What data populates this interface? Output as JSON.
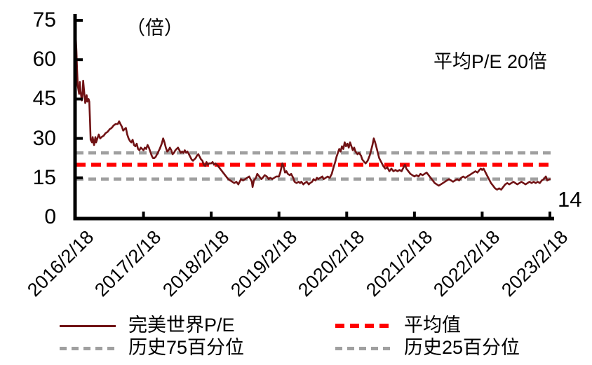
{
  "legend": {
    "items": [
      {
        "label": "完美世界P/E",
        "style": "solid",
        "color": "#701214",
        "thickness": 3
      },
      {
        "label": "历史75百分位",
        "style": "dashed",
        "color": "#A0A0A0",
        "dash": [
          10,
          7
        ],
        "thickness": 5
      },
      {
        "label": "平均值",
        "style": "dashed",
        "color": "#FF0000",
        "dash": [
          13,
          8
        ],
        "thickness": 6
      },
      {
        "label": "历史25百分位",
        "style": "dashed",
        "color": "#A0A0A0",
        "dash": [
          10,
          7
        ],
        "thickness": 5
      }
    ]
  },
  "chart_data": {
    "type": "line",
    "title": "",
    "unit_label": "（倍）",
    "annotation": "平均P/E 20倍",
    "series_end_label": "14",
    "x_tick_labels": [
      "2016/2/18",
      "2017/2/18",
      "2018/2/18",
      "2019/2/18",
      "2020/2/18",
      "2021/2/18",
      "2022/2/18",
      "2023/2/18"
    ],
    "y_ticks": [
      0,
      15,
      30,
      45,
      60,
      75
    ],
    "ylim": [
      0,
      75
    ],
    "x_range_years": [
      0,
      7
    ],
    "grid": false,
    "legend_position": "bottom",
    "reference_lines": [
      {
        "name": "历史75百分位",
        "value": 24.5,
        "color": "#A0A0A0",
        "dash": [
          11,
          7
        ],
        "width": 4.5
      },
      {
        "name": "平均值",
        "value": 20,
        "color": "#FF0000",
        "dash": [
          14,
          8
        ],
        "width": 5.5
      },
      {
        "name": "历史25百分位",
        "value": 14.5,
        "color": "#A0A0A0",
        "dash": [
          11,
          7
        ],
        "width": 4.5
      }
    ],
    "series": [
      {
        "name": "完美世界P/E",
        "color": "#701214",
        "style": "solid",
        "last_value": 14,
        "points": [
          [
            0,
            69
          ],
          [
            0.01,
            63
          ],
          [
            0.02,
            56
          ],
          [
            0.03,
            50
          ],
          [
            0.05,
            47
          ],
          [
            0.06,
            51.5
          ],
          [
            0.07,
            48
          ],
          [
            0.09,
            44.5
          ],
          [
            0.1,
            47
          ],
          [
            0.11,
            52
          ],
          [
            0.13,
            46
          ],
          [
            0.14,
            43.5
          ],
          [
            0.16,
            46.5
          ],
          [
            0.17,
            44
          ],
          [
            0.19,
            45
          ],
          [
            0.2,
            44
          ],
          [
            0.21,
            37
          ],
          [
            0.22,
            29.5
          ],
          [
            0.24,
            28.5
          ],
          [
            0.25,
            30.5
          ],
          [
            0.27,
            27.5
          ],
          [
            0.29,
            30.5
          ],
          [
            0.3,
            28.5
          ],
          [
            0.32,
            30
          ],
          [
            0.34,
            31.5
          ],
          [
            0.36,
            30
          ],
          [
            0.38,
            30.5
          ],
          [
            0.41,
            31
          ],
          [
            0.44,
            32
          ],
          [
            0.47,
            32.5
          ],
          [
            0.5,
            33.5
          ],
          [
            0.53,
            34
          ],
          [
            0.56,
            35
          ],
          [
            0.59,
            35.5
          ],
          [
            0.62,
            35.5
          ],
          [
            0.64,
            36.5
          ],
          [
            0.66,
            35.5
          ],
          [
            0.68,
            34.5
          ],
          [
            0.7,
            33
          ],
          [
            0.72,
            33.5
          ],
          [
            0.74,
            34
          ],
          [
            0.76,
            31.5
          ],
          [
            0.78,
            30
          ],
          [
            0.8,
            29
          ],
          [
            0.82,
            28.5
          ],
          [
            0.84,
            29.5
          ],
          [
            0.86,
            27.5
          ],
          [
            0.88,
            27
          ],
          [
            0.9,
            28
          ],
          [
            0.92,
            26
          ],
          [
            0.94,
            25.5
          ],
          [
            0.96,
            26.5
          ],
          [
            0.98,
            26
          ],
          [
            1,
            25.5
          ],
          [
            1.02,
            26.5
          ],
          [
            1.04,
            26
          ],
          [
            1.06,
            27.5
          ],
          [
            1.08,
            26.5
          ],
          [
            1.1,
            25
          ],
          [
            1.12,
            23.5
          ],
          [
            1.14,
            22.5
          ],
          [
            1.16,
            22.5
          ],
          [
            1.18,
            23
          ],
          [
            1.21,
            24.5
          ],
          [
            1.24,
            26
          ],
          [
            1.27,
            28
          ],
          [
            1.29,
            30
          ],
          [
            1.31,
            28.5
          ],
          [
            1.33,
            26.5
          ],
          [
            1.35,
            25
          ],
          [
            1.37,
            25.5
          ],
          [
            1.39,
            26.5
          ],
          [
            1.41,
            25.5
          ],
          [
            1.43,
            24
          ],
          [
            1.45,
            24.5
          ],
          [
            1.47,
            25.5
          ],
          [
            1.49,
            26
          ],
          [
            1.51,
            26.5
          ],
          [
            1.53,
            25.5
          ],
          [
            1.55,
            24.5
          ],
          [
            1.57,
            25
          ],
          [
            1.59,
            24.5
          ],
          [
            1.61,
            25.5
          ],
          [
            1.63,
            24.5
          ],
          [
            1.65,
            25
          ],
          [
            1.67,
            24
          ],
          [
            1.69,
            23
          ],
          [
            1.71,
            22
          ],
          [
            1.73,
            21.5
          ],
          [
            1.75,
            22
          ],
          [
            1.77,
            22.5
          ],
          [
            1.79,
            23.5
          ],
          [
            1.81,
            24
          ],
          [
            1.83,
            23
          ],
          [
            1.85,
            22
          ],
          [
            1.87,
            21.5
          ],
          [
            1.89,
            20
          ],
          [
            1.91,
            19.5
          ],
          [
            1.93,
            21
          ],
          [
            1.95,
            20
          ],
          [
            1.97,
            20.5
          ],
          [
            2,
            20.5
          ],
          [
            2.02,
            21
          ],
          [
            2.04,
            20
          ],
          [
            2.06,
            20.5
          ],
          [
            2.08,
            20
          ],
          [
            2.1,
            19.5
          ],
          [
            2.13,
            18.5
          ],
          [
            2.16,
            17.5
          ],
          [
            2.19,
            16.5
          ],
          [
            2.22,
            15.5
          ],
          [
            2.25,
            14.5
          ],
          [
            2.28,
            14
          ],
          [
            2.31,
            13.5
          ],
          [
            2.34,
            13
          ],
          [
            2.37,
            13.5
          ],
          [
            2.4,
            12.5
          ],
          [
            2.42,
            13.5
          ],
          [
            2.44,
            14.5
          ],
          [
            2.47,
            14
          ],
          [
            2.5,
            14.5
          ],
          [
            2.53,
            15
          ],
          [
            2.56,
            15.5
          ],
          [
            2.58,
            14.5
          ],
          [
            2.6,
            13.5
          ],
          [
            2.61,
            11.5
          ],
          [
            2.63,
            14
          ],
          [
            2.66,
            15
          ],
          [
            2.68,
            16.5
          ],
          [
            2.71,
            15.5
          ],
          [
            2.74,
            14.5
          ],
          [
            2.76,
            15
          ],
          [
            2.79,
            16
          ],
          [
            2.82,
            15.5
          ],
          [
            2.85,
            14.5
          ],
          [
            2.87,
            15
          ],
          [
            2.9,
            14.5
          ],
          [
            2.93,
            15
          ],
          [
            2.96,
            15.5
          ],
          [
            2.98,
            15.5
          ],
          [
            3,
            15.5
          ],
          [
            3.02,
            17
          ],
          [
            3.05,
            20.5
          ],
          [
            3.07,
            19
          ],
          [
            3.09,
            17
          ],
          [
            3.11,
            17.5
          ],
          [
            3.13,
            16.5
          ],
          [
            3.16,
            16
          ],
          [
            3.18,
            16.5
          ],
          [
            3.21,
            15
          ],
          [
            3.23,
            13.5
          ],
          [
            3.26,
            13
          ],
          [
            3.29,
            13.5
          ],
          [
            3.31,
            13
          ],
          [
            3.33,
            13.5
          ],
          [
            3.36,
            12.5
          ],
          [
            3.38,
            13
          ],
          [
            3.41,
            13.5
          ],
          [
            3.44,
            12.5
          ],
          [
            3.46,
            13
          ],
          [
            3.49,
            13.5
          ],
          [
            3.51,
            14.5
          ],
          [
            3.54,
            14
          ],
          [
            3.56,
            15
          ],
          [
            3.58,
            14.5
          ],
          [
            3.61,
            15
          ],
          [
            3.64,
            15.5
          ],
          [
            3.66,
            14.5
          ],
          [
            3.69,
            15
          ],
          [
            3.72,
            15.5
          ],
          [
            3.75,
            15
          ],
          [
            3.78,
            16.5
          ],
          [
            3.8,
            18.5
          ],
          [
            3.83,
            21
          ],
          [
            3.85,
            23
          ],
          [
            3.87,
            24.5
          ],
          [
            3.89,
            26
          ],
          [
            3.91,
            25
          ],
          [
            3.93,
            27
          ],
          [
            3.95,
            26
          ],
          [
            3.97,
            28.5
          ],
          [
            3.99,
            27
          ],
          [
            4.01,
            28
          ],
          [
            4.03,
            26.5
          ],
          [
            4.05,
            28.5
          ],
          [
            4.07,
            27
          ],
          [
            4.09,
            25.5
          ],
          [
            4.11,
            26.5
          ],
          [
            4.13,
            25
          ],
          [
            4.16,
            24
          ],
          [
            4.18,
            24.5
          ],
          [
            4.21,
            23.5
          ],
          [
            4.23,
            22
          ],
          [
            4.26,
            21
          ],
          [
            4.28,
            20.5
          ],
          [
            4.31,
            21.5
          ],
          [
            4.34,
            23.5
          ],
          [
            4.36,
            25.5
          ],
          [
            4.38,
            27.5
          ],
          [
            4.4,
            30
          ],
          [
            4.42,
            28.5
          ],
          [
            4.44,
            26.5
          ],
          [
            4.46,
            24.5
          ],
          [
            4.48,
            22.5
          ],
          [
            4.51,
            21
          ],
          [
            4.54,
            19.5
          ],
          [
            4.57,
            18.5
          ],
          [
            4.6,
            19
          ],
          [
            4.63,
            17.5
          ],
          [
            4.66,
            18.5
          ],
          [
            4.69,
            17.5
          ],
          [
            4.72,
            18
          ],
          [
            4.75,
            17.5
          ],
          [
            4.78,
            18
          ],
          [
            4.81,
            17.5
          ],
          [
            4.84,
            19
          ],
          [
            4.86,
            20
          ],
          [
            4.88,
            18.5
          ],
          [
            4.91,
            17.5
          ],
          [
            4.94,
            16.5
          ],
          [
            4.97,
            16
          ],
          [
            5,
            15.5
          ],
          [
            5.03,
            16
          ],
          [
            5.06,
            15.5
          ],
          [
            5.09,
            16.5
          ],
          [
            5.12,
            16
          ],
          [
            5.15,
            16.5
          ],
          [
            5.18,
            17
          ],
          [
            5.21,
            16
          ],
          [
            5.24,
            15
          ],
          [
            5.27,
            14
          ],
          [
            5.3,
            13
          ],
          [
            5.33,
            12.5
          ],
          [
            5.36,
            12
          ],
          [
            5.39,
            12.5
          ],
          [
            5.42,
            13
          ],
          [
            5.45,
            13.5
          ],
          [
            5.48,
            14
          ],
          [
            5.51,
            14.5
          ],
          [
            5.54,
            14
          ],
          [
            5.57,
            13.5
          ],
          [
            5.6,
            14
          ],
          [
            5.63,
            14.5
          ],
          [
            5.66,
            14
          ],
          [
            5.69,
            15
          ],
          [
            5.72,
            15.5
          ],
          [
            5.75,
            15
          ],
          [
            5.78,
            15.5
          ],
          [
            5.81,
            16
          ],
          [
            5.84,
            16.5
          ],
          [
            5.87,
            17
          ],
          [
            5.9,
            17.5
          ],
          [
            5.93,
            17
          ],
          [
            5.96,
            18
          ],
          [
            5.98,
            18.5
          ],
          [
            6,
            18
          ],
          [
            6.02,
            18.5
          ],
          [
            6.04,
            17.5
          ],
          [
            6.07,
            16
          ],
          [
            6.1,
            14.5
          ],
          [
            6.13,
            13
          ],
          [
            6.16,
            12
          ],
          [
            6.19,
            11
          ],
          [
            6.22,
            10.5
          ],
          [
            6.25,
            11
          ],
          [
            6.28,
            10.5
          ],
          [
            6.31,
            11.5
          ],
          [
            6.34,
            12.5
          ],
          [
            6.37,
            13
          ],
          [
            6.4,
            12.5
          ],
          [
            6.43,
            13
          ],
          [
            6.46,
            13.5
          ],
          [
            6.49,
            13
          ],
          [
            6.52,
            12.5
          ],
          [
            6.55,
            13
          ],
          [
            6.58,
            13.5
          ],
          [
            6.61,
            13
          ],
          [
            6.64,
            12.5
          ],
          [
            6.67,
            13
          ],
          [
            6.7,
            13.5
          ],
          [
            6.73,
            13
          ],
          [
            6.76,
            13.5
          ],
          [
            6.79,
            13
          ],
          [
            6.82,
            13.5
          ],
          [
            6.85,
            13
          ],
          [
            6.88,
            14
          ],
          [
            6.91,
            14.5
          ],
          [
            6.94,
            15.5
          ],
          [
            6.96,
            14
          ],
          [
            6.98,
            14.3
          ],
          [
            7,
            14.5
          ]
        ]
      }
    ]
  }
}
